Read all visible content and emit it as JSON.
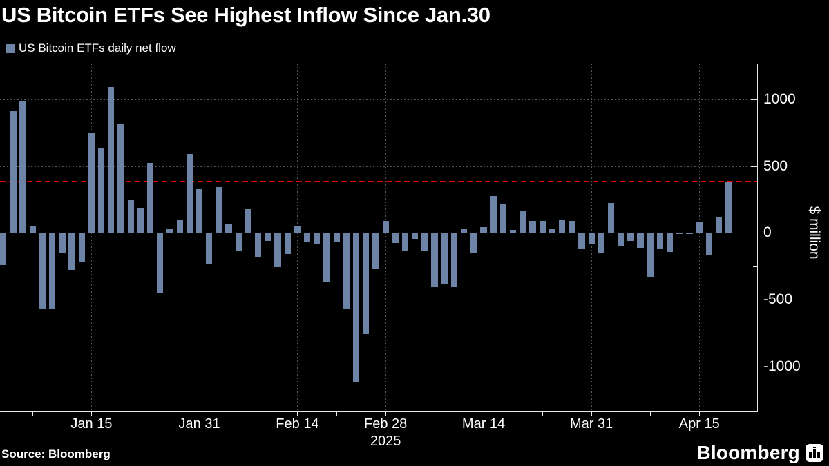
{
  "title": "US Bitcoin ETFs See Highest Inflow Since Jan.30",
  "legend": {
    "label": "US Bitcoin ETFs daily net flow"
  },
  "source": "Source: Bloomberg",
  "branding": {
    "wordmark": "Bloomberg"
  },
  "colors": {
    "background": "#000000",
    "bar": "#6E84A7",
    "reference_line": "#EE0000",
    "grid": "#565656",
    "axis": "#E8E8E8",
    "text": "#FFFFFF"
  },
  "chart_data": {
    "type": "bar",
    "title": "US Bitcoin ETFs See Highest Inflow Since Jan.30",
    "ylabel": "$ million",
    "ylim": [
      -1338,
      1268
    ],
    "grid": "dotted",
    "legend_position": "top-left",
    "series": [
      {
        "name": "US Bitcoin ETFs daily net flow",
        "values": [
          -240,
          910,
          985,
          55,
          -565,
          -565,
          -150,
          -280,
          -215,
          750,
          630,
          1090,
          815,
          250,
          190,
          525,
          -455,
          25,
          95,
          590,
          325,
          -230,
          345,
          70,
          -135,
          175,
          -180,
          -60,
          -255,
          -160,
          55,
          -65,
          -80,
          -365,
          -65,
          -570,
          -1120,
          -760,
          -270,
          90,
          -75,
          -140,
          -45,
          -135,
          -405,
          -380,
          -400,
          25,
          -150,
          45,
          275,
          215,
          20,
          165,
          90,
          90,
          35,
          95,
          90,
          -120,
          -85,
          -155,
          225,
          -95,
          -60,
          -110,
          -330,
          -125,
          -145,
          -10,
          -10,
          80,
          -170,
          115,
          385
        ]
      }
    ],
    "y_ticks": [
      {
        "value": 1000,
        "label": "1000"
      },
      {
        "value": 500,
        "label": "500"
      },
      {
        "value": 0,
        "label": "0"
      },
      {
        "value": -500,
        "label": "-500"
      },
      {
        "value": -1000,
        "label": "-1000"
      }
    ],
    "y_minor_ticks": [
      750,
      250,
      -250,
      -750
    ],
    "x_tick_labels": [
      {
        "label": "Jan 15",
        "bar_index": 9
      },
      {
        "label": "Jan 31",
        "bar_index": 20
      },
      {
        "label": "Feb 14",
        "bar_index": 30
      },
      {
        "label": "Feb 28",
        "bar_index": 39
      },
      {
        "label": "Mar 14",
        "bar_index": 49
      },
      {
        "label": "Mar 31",
        "bar_index": 60
      },
      {
        "label": "Apr 15",
        "bar_index": 71
      }
    ],
    "x_minor_tick_indices": [
      3,
      13,
      25,
      34,
      44,
      55,
      66,
      75
    ],
    "year_label": {
      "text": "2025",
      "bar_index": 39
    },
    "reference_line": {
      "value": 383,
      "style": "dashed"
    }
  }
}
